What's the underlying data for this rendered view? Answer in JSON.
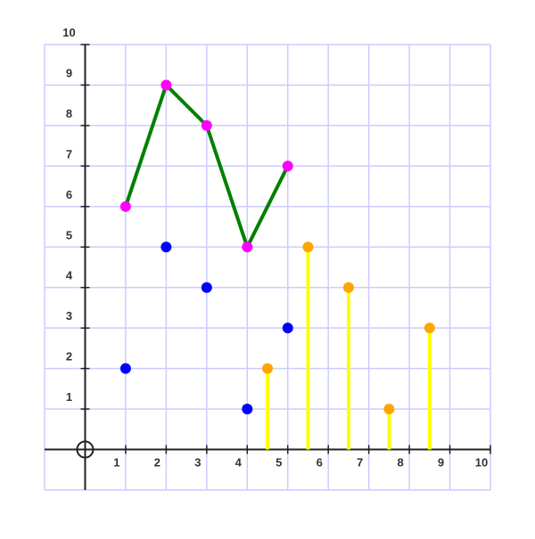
{
  "chart_data": {
    "type": "scatter",
    "x_ticks": [
      "1",
      "2",
      "3",
      "4",
      "5",
      "6",
      "7",
      "8",
      "9",
      "10"
    ],
    "y_ticks": [
      "1",
      "2",
      "3",
      "4",
      "5",
      "6",
      "7",
      "8",
      "9",
      "10"
    ],
    "xlim": [
      -1,
      10
    ],
    "ylim": [
      -1,
      10
    ],
    "grid": true,
    "series": [
      {
        "kind": "line",
        "color": "#008000",
        "marker_color": "#ff00ff",
        "points": [
          [
            1,
            6
          ],
          [
            2,
            9
          ],
          [
            3,
            8
          ],
          [
            4,
            5
          ],
          [
            5,
            7
          ]
        ]
      },
      {
        "kind": "scatter",
        "marker_color": "#0000ff",
        "points": [
          [
            1,
            2
          ],
          [
            2,
            5
          ],
          [
            3,
            4
          ],
          [
            4,
            1
          ],
          [
            5,
            3
          ]
        ]
      },
      {
        "kind": "stem",
        "color": "#ffff00",
        "marker_color": "#ffa500",
        "points": [
          [
            4.5,
            2
          ],
          [
            5.5,
            5
          ],
          [
            6.5,
            4
          ],
          [
            7.5,
            1
          ],
          [
            8.5,
            3
          ]
        ]
      }
    ]
  },
  "colors": {
    "grid": "#ccccff",
    "axis": "#222222",
    "background": "#ffffff"
  }
}
